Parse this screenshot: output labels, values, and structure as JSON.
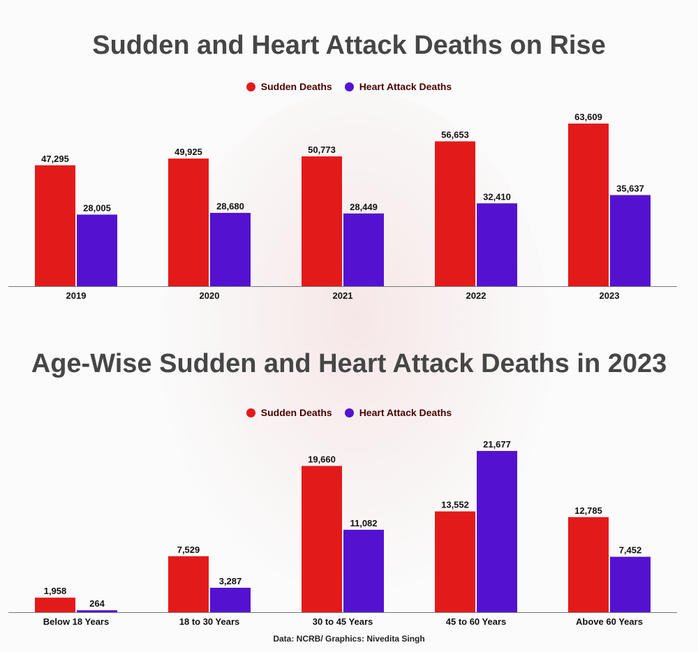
{
  "colors": {
    "sudden": "#e31a1a",
    "heart": "#5412d0",
    "axis": "#777777",
    "label": "#111111"
  },
  "legend": {
    "sudden_label": "Sudden Deaths",
    "heart_label": "Heart Attack Deaths"
  },
  "source": "Data: NCRB/ Graphics: Nivedita Singh",
  "chart_data": [
    {
      "type": "bar",
      "title": "Sudden and Heart Attack Deaths on Rise",
      "categories": [
        "2019",
        "2020",
        "2021",
        "2022",
        "2023"
      ],
      "series": [
        {
          "name": "Sudden Deaths",
          "values": [
            47295,
            49925,
            50773,
            56653,
            63609
          ]
        },
        {
          "name": "Heart Attack Deaths",
          "values": [
            28005,
            28680,
            28449,
            32410,
            35637
          ]
        }
      ],
      "value_labels": {
        "sudden": [
          "47,295",
          "49,925",
          "50,773",
          "56,653",
          "63,609"
        ],
        "heart": [
          "28,005",
          "28,680",
          "28,449",
          "32,410",
          "35,637"
        ]
      },
      "ylim": [
        0,
        63609
      ],
      "xlabel": "",
      "ylabel": "",
      "legend_position": "top-center",
      "grid": false
    },
    {
      "type": "bar",
      "title": "Age-Wise Sudden and Heart Attack Deaths in 2023",
      "categories": [
        "Below 18 Years",
        "18 to 30 Years",
        "30 to 45 Years",
        "45 to 60 Years",
        "Above 60 Years"
      ],
      "series": [
        {
          "name": "Sudden Deaths",
          "values": [
            1958,
            7529,
            19660,
            13552,
            12785
          ]
        },
        {
          "name": "Heart Attack Deaths",
          "values": [
            264,
            3287,
            11082,
            21677,
            7452
          ]
        }
      ],
      "value_labels": {
        "sudden": [
          "1,958",
          "7,529",
          "19,660",
          "13,552",
          "12,785"
        ],
        "heart": [
          "264",
          "3,287",
          "11,082",
          "21,677",
          "7,452"
        ]
      },
      "ylim": [
        0,
        21677
      ],
      "xlabel": "",
      "ylabel": "",
      "legend_position": "top-center",
      "grid": false
    }
  ]
}
